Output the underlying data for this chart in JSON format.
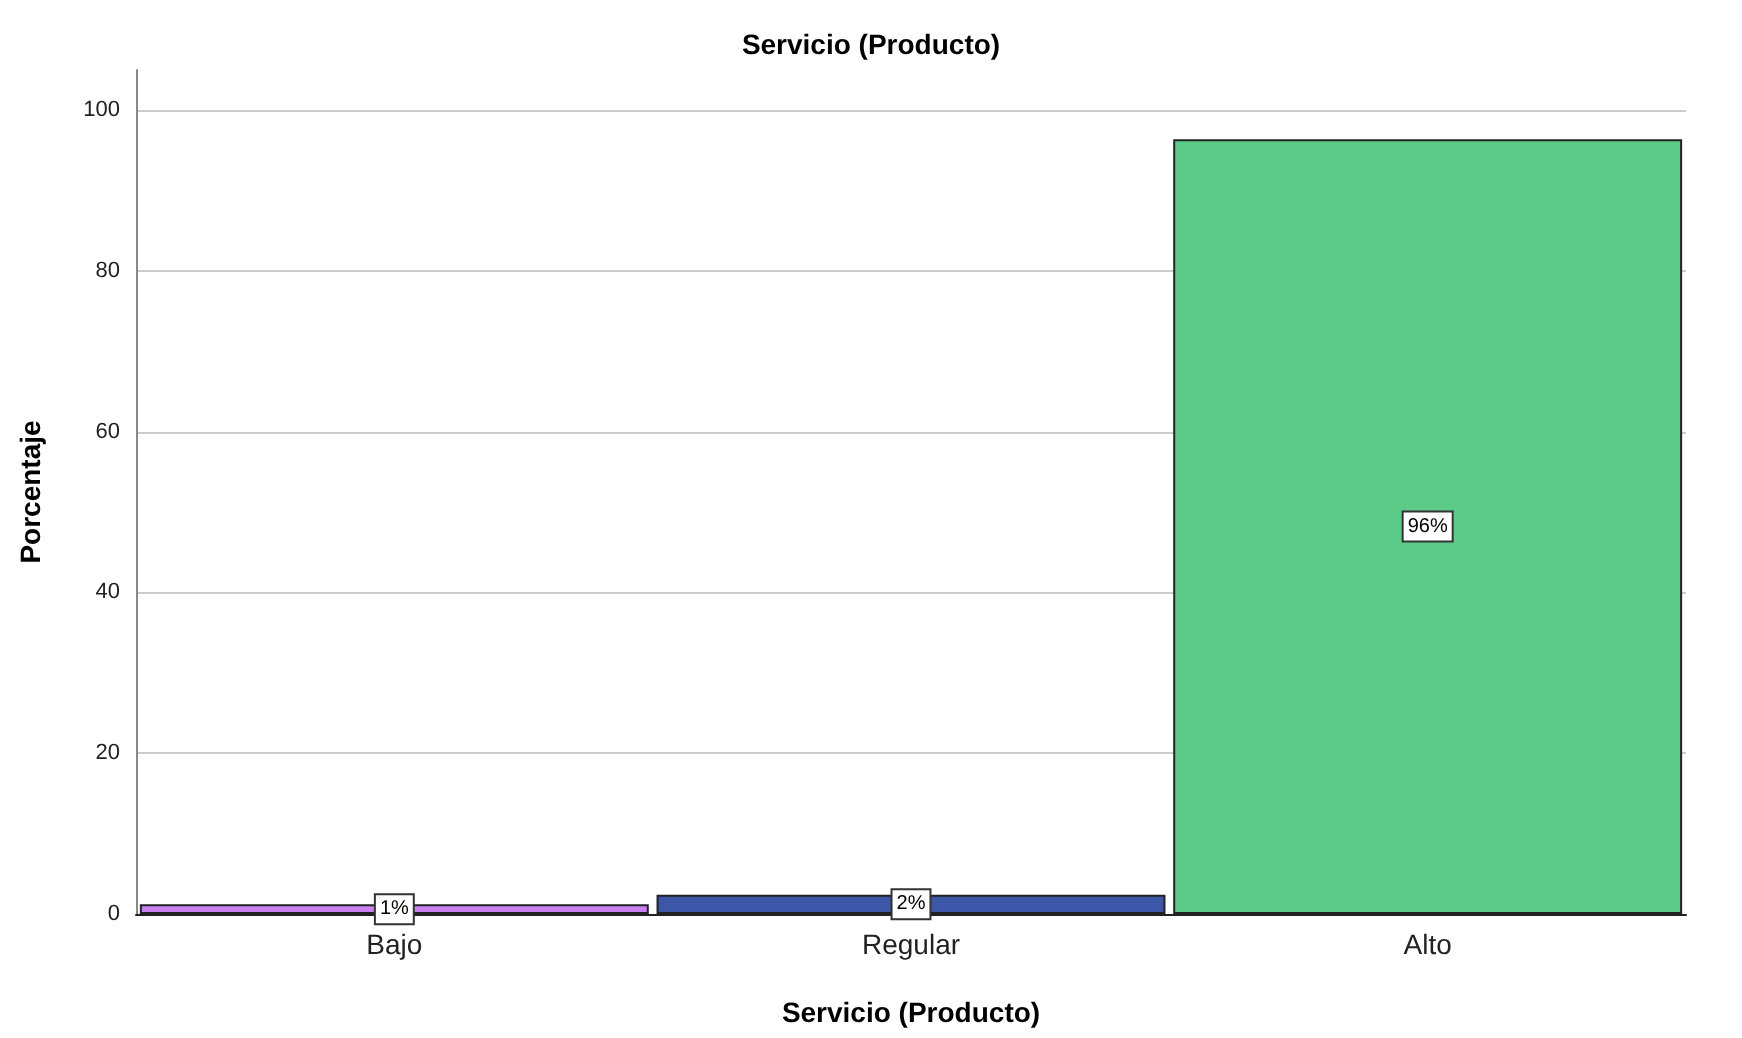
{
  "chart_data": {
    "type": "bar",
    "title": "Servicio (Producto)",
    "xlabel": "Servicio (Producto)",
    "ylabel": "Porcentaje",
    "categories": [
      "Bajo",
      "Regular",
      "Alto"
    ],
    "values": [
      1.2,
      2.4,
      96.4
    ],
    "colors": [
      "#cc7ff0",
      "#3d56a8",
      "#5ccb8a"
    ],
    "value_labels": [
      "1%",
      "2%",
      "96%"
    ],
    "ylim": [
      0,
      105
    ],
    "yticks": [
      0,
      20,
      40,
      60,
      80,
      100
    ],
    "grid": "y"
  }
}
